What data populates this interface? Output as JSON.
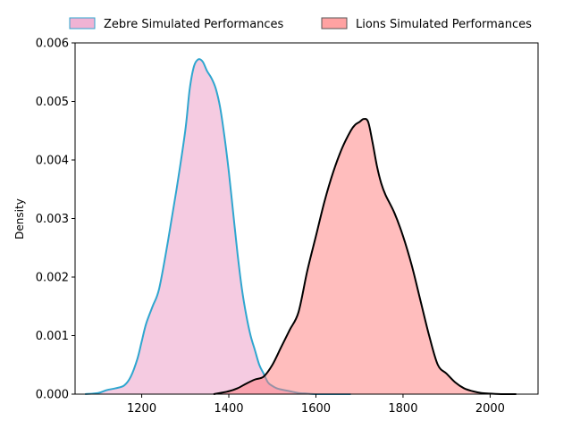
{
  "chart_data": {
    "type": "area",
    "title": "",
    "xlabel": "",
    "ylabel": "Density",
    "xlim": [
      1047,
      2110
    ],
    "ylim": [
      0,
      0.006
    ],
    "x_ticks": [
      1200,
      1400,
      1600,
      1800,
      2000
    ],
    "y_ticks": [
      0.0,
      0.001,
      0.002,
      0.003,
      0.004,
      0.005,
      0.006
    ],
    "y_tick_labels": [
      "0.000",
      "0.001",
      "0.002",
      "0.003",
      "0.004",
      "0.005",
      "0.006"
    ],
    "grid": false,
    "legend": {
      "placement": "top, outside plot",
      "ncol": 2
    },
    "series": [
      {
        "name": "Zebre Simulated Performances",
        "fill_color": "#e88bbd",
        "line_color": "#2fa6cf",
        "fill_opacity": 0.45,
        "x": [
          1070,
          1100,
          1120,
          1140,
          1160,
          1175,
          1190,
          1200,
          1210,
          1225,
          1240,
          1260,
          1280,
          1300,
          1310,
          1320,
          1330,
          1340,
          1350,
          1360,
          1370,
          1380,
          1390,
          1400,
          1410,
          1420,
          1430,
          1440,
          1450,
          1460,
          1470,
          1480,
          1490,
          1500,
          1510,
          1520,
          1540,
          1560,
          1580,
          1600,
          1640,
          1680
        ],
        "y": [
          0.0,
          2e-05,
          7e-05,
          0.0001,
          0.00015,
          0.0003,
          0.0006,
          0.0009,
          0.0012,
          0.0015,
          0.0018,
          0.0026,
          0.0035,
          0.0045,
          0.0052,
          0.0056,
          0.00572,
          0.00568,
          0.00552,
          0.0054,
          0.00522,
          0.0049,
          0.0044,
          0.0038,
          0.0031,
          0.0024,
          0.0018,
          0.00135,
          0.001,
          0.00075,
          0.0005,
          0.00035,
          0.0002,
          0.00014,
          0.0001,
          8e-05,
          5e-05,
          2e-05,
          1e-05,
          0.0,
          0.0,
          0.0
        ]
      },
      {
        "name": "Lions Simulated Performances",
        "fill_color": "#ff7b7b",
        "line_color": "#000000",
        "fill_opacity": 0.5,
        "x": [
          1365,
          1400,
          1420,
          1440,
          1460,
          1480,
          1500,
          1520,
          1540,
          1560,
          1580,
          1600,
          1620,
          1640,
          1660,
          1680,
          1690,
          1700,
          1710,
          1720,
          1730,
          1740,
          1750,
          1760,
          1780,
          1800,
          1820,
          1840,
          1860,
          1880,
          1900,
          1920,
          1940,
          1960,
          1980,
          2000,
          2030,
          2060
        ],
        "y": [
          0.0,
          5e-05,
          0.0001,
          0.00018,
          0.00025,
          0.0003,
          0.0005,
          0.0008,
          0.0011,
          0.0014,
          0.0021,
          0.0027,
          0.0033,
          0.0038,
          0.0042,
          0.0045,
          0.0046,
          0.00465,
          0.0047,
          0.00465,
          0.0043,
          0.0039,
          0.0036,
          0.0034,
          0.0031,
          0.0027,
          0.0022,
          0.0016,
          0.001,
          0.0005,
          0.00035,
          0.0002,
          0.0001,
          5e-05,
          2e-05,
          1e-05,
          0.0,
          0.0
        ]
      }
    ]
  }
}
